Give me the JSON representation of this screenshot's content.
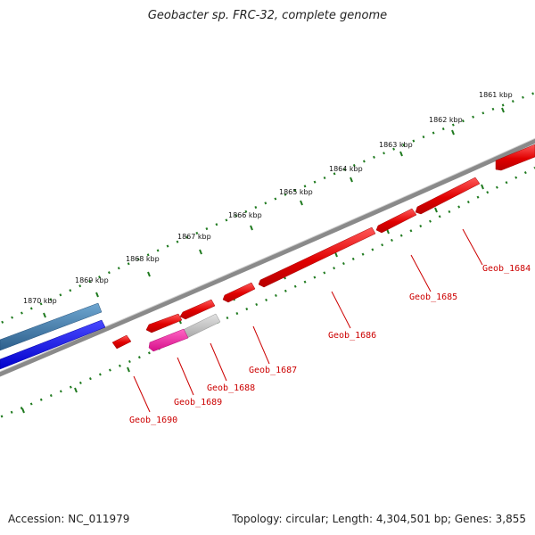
{
  "title": "Geobacter sp. FRC-32, complete genome",
  "footer": {
    "accession": "Accession: NC_011979",
    "summary": "Topology: circular; Length: 4,304,501 bp; Genes: 3,855"
  },
  "ruler_labels": [
    "1861 kbp",
    "1862 kbp",
    "1863 kbp",
    "1864 kbp",
    "1865 kbp",
    "1866 kbp",
    "1867 kbp",
    "1868 kbp",
    "1869 kbp",
    "1870 kbp"
  ],
  "gene_labels": [
    "Geob_1684",
    "Geob_1685",
    "Geob_1686",
    "Geob_1687",
    "Geob_1688",
    "Geob_1689",
    "Geob_1690"
  ],
  "colors": {
    "backbone": "#8a8a8a",
    "tick": "#1f7a1f",
    "red_gene": "#ee1111",
    "magenta_gene": "#ee1199",
    "grey_gene": "#bdbdbd",
    "steel_gene": "#3a78a8",
    "blue_gene": "#1a1af0",
    "label": "#cc0000"
  }
}
